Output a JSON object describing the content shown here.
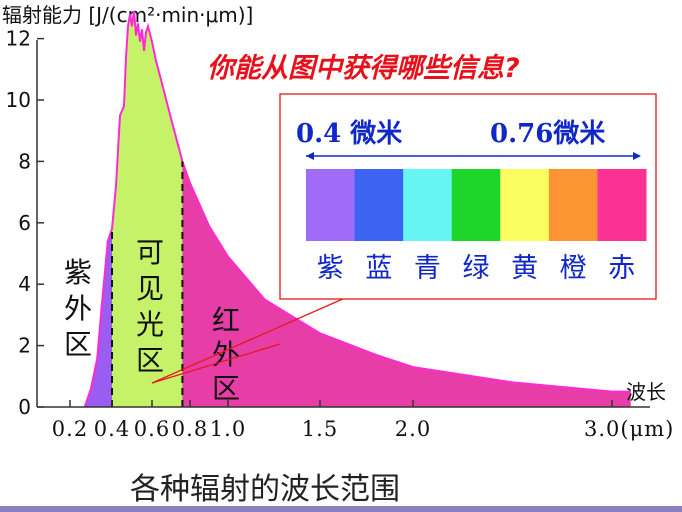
{
  "chart_data": {
    "type": "area",
    "ylabel": "辐射能力 [J/(cm²·min·μm)]",
    "xlabel": "波长",
    "caption": "各种辐射的波长范围",
    "question": "你能从图中获得哪些信息?",
    "ylim": [
      0,
      13
    ],
    "xlim": [
      0.1,
      3.15
    ],
    "y_ticks": [
      "0",
      "2",
      "4",
      "6",
      "8",
      "10",
      "12"
    ],
    "x_ticks": [
      "0.2",
      "0.4",
      "0.6",
      "0.8",
      "1.0",
      "1.5",
      "2.0",
      "3.0(μm)"
    ],
    "curve": {
      "x": [
        0.27,
        0.3,
        0.33,
        0.35,
        0.38,
        0.4,
        0.42,
        0.44,
        0.46,
        0.47,
        0.48,
        0.49,
        0.5,
        0.51,
        0.52,
        0.53,
        0.54,
        0.55,
        0.56,
        0.57,
        0.58,
        0.6,
        0.62,
        0.65,
        0.7,
        0.76,
        0.8,
        0.9,
        1.0,
        1.2,
        1.5,
        1.8,
        2.0,
        2.5,
        3.0,
        3.1
      ],
      "y": [
        0.0,
        0.6,
        1.6,
        3.2,
        5.4,
        5.8,
        7.2,
        9.5,
        9.8,
        11.4,
        12.4,
        12.8,
        12.4,
        12.9,
        12.1,
        12.5,
        11.9,
        12.3,
        11.6,
        12.2,
        12.4,
        11.9,
        11.3,
        10.6,
        9.4,
        8.0,
        7.3,
        5.9,
        4.9,
        3.5,
        2.4,
        1.7,
        1.3,
        0.8,
        0.5,
        0.5
      ]
    },
    "regions": [
      {
        "name": "紫外区",
        "from": 0.27,
        "to": 0.4,
        "color": "#9b5cf2"
      },
      {
        "name": "可见光区",
        "from": 0.4,
        "to": 0.76,
        "color": "#c6f26a"
      },
      {
        "name": "红外区",
        "from": 0.76,
        "to": 3.1,
        "color": "#e63ea6"
      }
    ],
    "curve_color": "#ff2ad4",
    "boundaries": [
      0.4,
      0.76
    ],
    "spectrum": {
      "left_label": "0.4 微米",
      "right_label": "0.76微米",
      "colors": [
        "#a06cf7",
        "#3d63f2",
        "#66f5f2",
        "#1ed62a",
        "#fafc60",
        "#fb9432",
        "#fb3293"
      ],
      "names": [
        "紫",
        "蓝",
        "青",
        "绿",
        "黄",
        "橙",
        "赤"
      ],
      "border_color": "#e51919"
    }
  }
}
